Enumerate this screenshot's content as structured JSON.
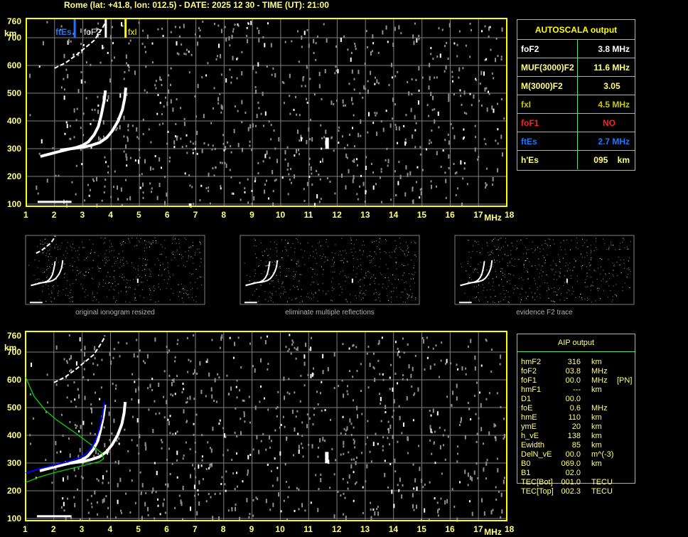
{
  "header": {
    "title": "Rome (lat: +41.8, lon: 012.5) - DATE: 2025 12 30 - TIME (UT): 21:00"
  },
  "colors": {
    "axis": "#ffff00",
    "grid": "#808080",
    "trace": "#ffffff",
    "noise": "#909090",
    "ftEs": "#1e78ff",
    "fxI": "#ffff00",
    "profile": "#00e000",
    "fit": "#0000ff",
    "table_border": "#60e080"
  },
  "chart_data": [
    {
      "type": "scatter",
      "name_in_ui": "",
      "xlabel": "MHz",
      "ylabel": "km",
      "xlim": [
        1,
        18
      ],
      "ylim": [
        100,
        760
      ],
      "xticks": [
        "1",
        "2",
        "3",
        "4",
        "5",
        "6",
        "7",
        "8",
        "9",
        "10",
        "11",
        "12",
        "13",
        "14",
        "15",
        "16",
        "17",
        "18"
      ],
      "yticks": [
        "100",
        "200",
        "300",
        "400",
        "500",
        "600",
        "700",
        "760"
      ],
      "grid": true,
      "markers": [
        {
          "label": "ftEs",
          "freq": 2.7,
          "color": "#1e78ff"
        },
        {
          "label": "foF2",
          "freq": 3.8,
          "color": "#ffffff"
        },
        {
          "label": "fxI",
          "freq": 4.5,
          "color": "#ffff00"
        }
      ],
      "series": [
        {
          "kind": "o-trace",
          "freq": [
            1.5,
            1.8,
            2.1,
            2.5,
            2.8,
            3.0,
            3.2,
            3.4,
            3.55,
            3.65,
            3.75,
            3.8
          ],
          "height": [
            272,
            280,
            288,
            298,
            305,
            312,
            325,
            350,
            380,
            420,
            470,
            510
          ]
        },
        {
          "kind": "x-trace",
          "freq": [
            2.2,
            2.6,
            3.0,
            3.3,
            3.6,
            3.85,
            4.05,
            4.25,
            4.4,
            4.48,
            4.52
          ],
          "height": [
            295,
            300,
            305,
            312,
            322,
            340,
            365,
            400,
            440,
            480,
            520
          ]
        },
        {
          "kind": "multiple-reflection",
          "freq": [
            2.0,
            2.4,
            2.8,
            3.1,
            3.4,
            3.6,
            3.75,
            3.8
          ],
          "height": [
            590,
            610,
            640,
            665,
            690,
            720,
            745,
            760
          ]
        }
      ]
    },
    {
      "type": "scatter",
      "xlabel": "MHz",
      "ylabel": "km",
      "xlim": [
        1,
        18
      ],
      "ylim": [
        100,
        760
      ],
      "xticks": [
        "1",
        "2",
        "3",
        "4",
        "5",
        "6",
        "7",
        "8",
        "9",
        "10",
        "11",
        "12",
        "13",
        "14",
        "15",
        "16",
        "17",
        "18"
      ],
      "yticks": [
        "100",
        "200",
        "300",
        "400",
        "500",
        "600",
        "700",
        "760"
      ],
      "grid": true,
      "series": [
        {
          "kind": "profile",
          "color": "#00e000",
          "freq": [
            1.0,
            1.3,
            1.7,
            2.1,
            2.6,
            3.0,
            3.4,
            3.7,
            3.75,
            3.6,
            3.2,
            2.6,
            2.0,
            1.5,
            1.0
          ],
          "height": [
            610,
            540,
            490,
            455,
            420,
            390,
            360,
            335,
            315,
            305,
            295,
            280,
            265,
            250,
            230
          ]
        },
        {
          "kind": "fitted-o-trace",
          "color": "#0000ff",
          "freq": [
            1.05,
            1.5,
            2.0,
            2.5,
            2.9,
            3.2,
            3.45,
            3.6,
            3.7,
            3.78
          ],
          "height": [
            265,
            280,
            292,
            305,
            318,
            338,
            375,
            420,
            460,
            515
          ]
        }
      ]
    }
  ],
  "autoscala": {
    "title": "AUTOSCALA output",
    "rows": [
      {
        "label": "foF2",
        "value": "3.8 MHz",
        "color": "#ffffff"
      },
      {
        "label": "MUF(3000)F2",
        "value": "11.6 MHz",
        "color": "#ffff80"
      },
      {
        "label": "M(3000)F2",
        "value": "3.05    ",
        "color": "#ffff80"
      },
      {
        "label": "fxI",
        "value": "4.5 MHz",
        "color": "#c8c800"
      },
      {
        "label": "foF1",
        "value": "NO      ",
        "color": "#ff2020"
      },
      {
        "label": "ftEs",
        "value": "2.7 MHz",
        "color": "#1e78ff"
      },
      {
        "label": "h'Es",
        "value": "095    km",
        "color": "#ffff80"
      }
    ]
  },
  "aip": {
    "title": "AIP output",
    "rows": [
      {
        "k": "hmF2",
        "v": "316",
        "u": "km",
        "x": ""
      },
      {
        "k": "foF2",
        "v": "03.8",
        "u": "MHz",
        "x": ""
      },
      {
        "k": "foF1",
        "v": "00.0",
        "u": "MHz",
        "x": "[PN]"
      },
      {
        "k": "hmF1",
        "v": "---",
        "u": "km",
        "x": ""
      },
      {
        "k": "D1",
        "v": "00.0",
        "u": "",
        "x": ""
      },
      {
        "k": "foE",
        "v": "0.6",
        "u": "MHz",
        "x": ""
      },
      {
        "k": "hmE",
        "v": "110",
        "u": "km",
        "x": ""
      },
      {
        "k": "ymE",
        "v": "20",
        "u": "km",
        "x": ""
      },
      {
        "k": "h_vE",
        "v": "138",
        "u": "km",
        "x": ""
      },
      {
        "k": "Ewidth",
        "v": "85",
        "u": "km",
        "x": ""
      },
      {
        "k": "DelN_vE",
        "v": "00.0",
        "u": "m^(-3)",
        "x": ""
      },
      {
        "k": "B0",
        "v": "069.0",
        "u": "km",
        "x": ""
      },
      {
        "k": "B1",
        "v": "02.0",
        "u": "",
        "x": ""
      },
      {
        "k": "TEC[Bot]",
        "v": "001.0",
        "u": "TECU",
        "x": ""
      },
      {
        "k": "TEC[Top]",
        "v": "002.3",
        "u": "TECU",
        "x": ""
      }
    ]
  },
  "thumbnails": [
    {
      "caption": "original ionogram resized"
    },
    {
      "caption": "eliminate multiple reflections"
    },
    {
      "caption": "evidence F2 trace"
    }
  ]
}
